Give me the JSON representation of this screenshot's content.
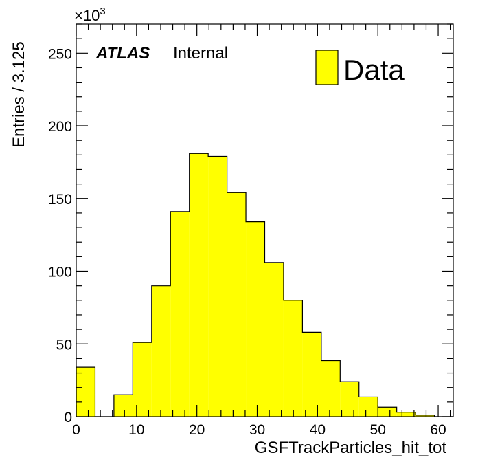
{
  "chart_data": {
    "type": "bar",
    "subtype": "histogram",
    "xlabel": "GSFTrackParticles_hit_tot",
    "ylabel": "Entries / 3.125",
    "y_scale_factor": "×10",
    "y_scale_exponent": "3",
    "xlim": [
      0,
      62.5
    ],
    "ylim": [
      0,
      270
    ],
    "xticks": [
      0,
      10,
      20,
      30,
      40,
      50,
      60
    ],
    "yticks": [
      0,
      50,
      100,
      150,
      200,
      250
    ],
    "bin_width": 3.125,
    "bin_edges": [
      0,
      3.125,
      6.25,
      9.375,
      12.5,
      15.625,
      18.75,
      21.875,
      25,
      28.125,
      31.25,
      34.375,
      37.5,
      40.625,
      43.75,
      46.875,
      50,
      53.125,
      56.25,
      59.375,
      62.5
    ],
    "values": [
      34,
      0,
      15,
      51,
      90,
      141,
      181,
      179,
      154,
      134,
      106,
      80,
      58,
      38.5,
      24,
      13.5,
      6.5,
      3,
      1,
      0
    ],
    "fill_color": "#ffff00",
    "grid": false,
    "experiment_label": "ATLAS",
    "status_label": "Internal",
    "legend": [
      {
        "name": "Data",
        "color": "#ffff00"
      }
    ],
    "legend_position": "top-right"
  }
}
